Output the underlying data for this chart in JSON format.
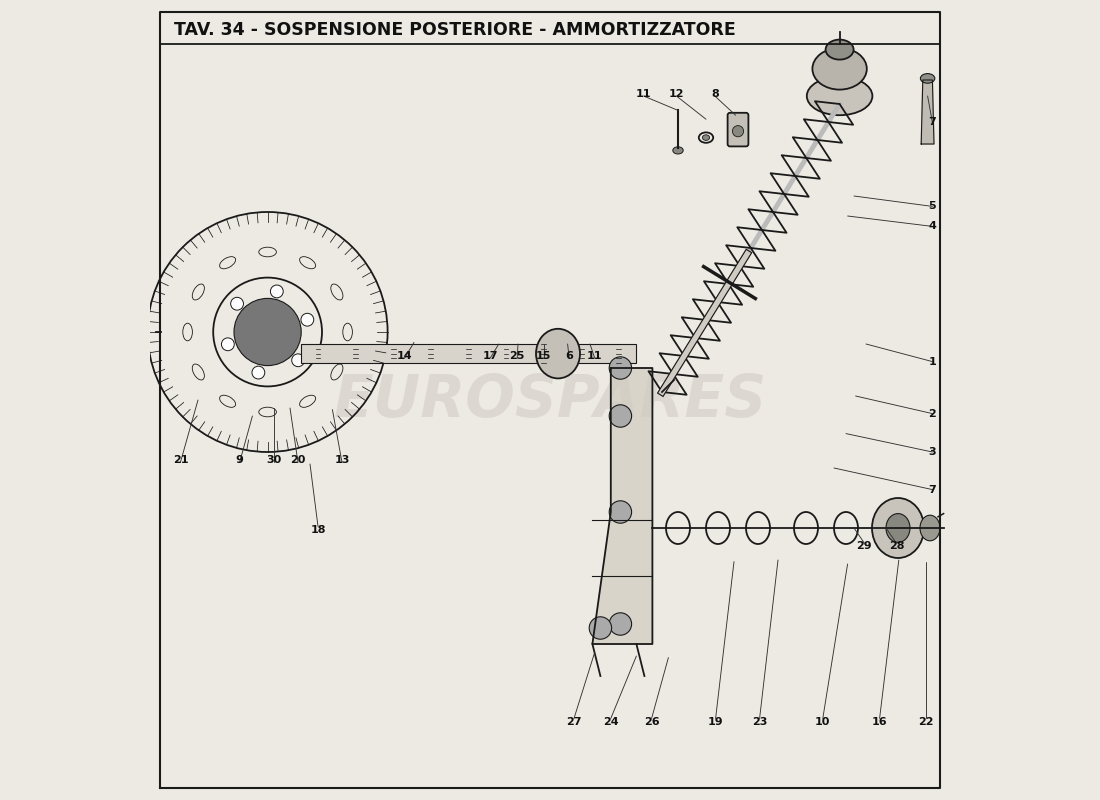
{
  "title": "TAV. 34 - SOSPENSIONE POSTERIORE - AMMORTIZZATORE",
  "title_fontsize": 12.5,
  "bg_color": "#edeae3",
  "border_color": "#111111",
  "watermark": "eurospares",
  "line_color": "#1a1a1a",
  "part_numbers": [
    {
      "num": "1",
      "nx": 0.978,
      "ny": 0.548
    },
    {
      "num": "2",
      "nx": 0.978,
      "ny": 0.483
    },
    {
      "num": "3",
      "nx": 0.978,
      "ny": 0.435
    },
    {
      "num": "4",
      "nx": 0.978,
      "ny": 0.717
    },
    {
      "num": "5",
      "nx": 0.978,
      "ny": 0.742
    },
    {
      "num": "7",
      "nx": 0.978,
      "ny": 0.388
    },
    {
      "num": "7",
      "nx": 0.978,
      "ny": 0.847
    },
    {
      "num": "8",
      "nx": 0.706,
      "ny": 0.883
    },
    {
      "num": "9",
      "nx": 0.112,
      "ny": 0.425
    },
    {
      "num": "10",
      "nx": 0.841,
      "ny": 0.098
    },
    {
      "num": "11",
      "nx": 0.617,
      "ny": 0.883
    },
    {
      "num": "11",
      "nx": 0.556,
      "ny": 0.555
    },
    {
      "num": "12",
      "nx": 0.658,
      "ny": 0.883
    },
    {
      "num": "13",
      "nx": 0.24,
      "ny": 0.425
    },
    {
      "num": "14",
      "nx": 0.318,
      "ny": 0.555
    },
    {
      "num": "15",
      "nx": 0.492,
      "ny": 0.555
    },
    {
      "num": "16",
      "nx": 0.912,
      "ny": 0.098
    },
    {
      "num": "17",
      "nx": 0.425,
      "ny": 0.555
    },
    {
      "num": "18",
      "nx": 0.21,
      "ny": 0.338
    },
    {
      "num": "19",
      "nx": 0.707,
      "ny": 0.098
    },
    {
      "num": "20",
      "nx": 0.185,
      "ny": 0.425
    },
    {
      "num": "21",
      "nx": 0.038,
      "ny": 0.425
    },
    {
      "num": "22",
      "nx": 0.97,
      "ny": 0.098
    },
    {
      "num": "23",
      "nx": 0.762,
      "ny": 0.098
    },
    {
      "num": "24",
      "nx": 0.576,
      "ny": 0.098
    },
    {
      "num": "25",
      "nx": 0.459,
      "ny": 0.555
    },
    {
      "num": "26",
      "nx": 0.627,
      "ny": 0.098
    },
    {
      "num": "27",
      "nx": 0.53,
      "ny": 0.098
    },
    {
      "num": "28",
      "nx": 0.933,
      "ny": 0.318
    },
    {
      "num": "29",
      "nx": 0.893,
      "ny": 0.318
    },
    {
      "num": "30",
      "nx": 0.155,
      "ny": 0.425
    },
    {
      "num": "6",
      "nx": 0.524,
      "ny": 0.555
    }
  ],
  "leader_lines": [
    [
      0.978,
      0.548,
      0.895,
      0.57
    ],
    [
      0.978,
      0.483,
      0.882,
      0.505
    ],
    [
      0.978,
      0.435,
      0.87,
      0.458
    ],
    [
      0.978,
      0.717,
      0.872,
      0.73
    ],
    [
      0.978,
      0.742,
      0.88,
      0.755
    ],
    [
      0.978,
      0.388,
      0.855,
      0.415
    ],
    [
      0.978,
      0.847,
      0.972,
      0.88
    ],
    [
      0.617,
      0.88,
      0.66,
      0.862
    ],
    [
      0.658,
      0.88,
      0.695,
      0.851
    ],
    [
      0.706,
      0.88,
      0.732,
      0.856
    ],
    [
      0.841,
      0.102,
      0.872,
      0.295
    ],
    [
      0.912,
      0.102,
      0.936,
      0.3
    ],
    [
      0.97,
      0.102,
      0.97,
      0.298
    ],
    [
      0.707,
      0.102,
      0.73,
      0.298
    ],
    [
      0.762,
      0.102,
      0.785,
      0.3
    ],
    [
      0.576,
      0.102,
      0.608,
      0.18
    ],
    [
      0.627,
      0.102,
      0.648,
      0.178
    ],
    [
      0.53,
      0.102,
      0.556,
      0.185
    ],
    [
      0.038,
      0.422,
      0.06,
      0.5
    ],
    [
      0.112,
      0.422,
      0.128,
      0.48
    ],
    [
      0.155,
      0.422,
      0.155,
      0.49
    ],
    [
      0.185,
      0.422,
      0.175,
      0.49
    ],
    [
      0.24,
      0.422,
      0.228,
      0.488
    ],
    [
      0.21,
      0.342,
      0.2,
      0.42
    ],
    [
      0.318,
      0.552,
      0.33,
      0.572
    ],
    [
      0.425,
      0.552,
      0.436,
      0.57
    ],
    [
      0.459,
      0.552,
      0.46,
      0.57
    ],
    [
      0.492,
      0.552,
      0.492,
      0.57
    ],
    [
      0.524,
      0.552,
      0.522,
      0.57
    ],
    [
      0.556,
      0.552,
      0.55,
      0.57
    ],
    [
      0.893,
      0.321,
      0.88,
      0.34
    ],
    [
      0.933,
      0.321,
      0.92,
      0.34
    ]
  ]
}
